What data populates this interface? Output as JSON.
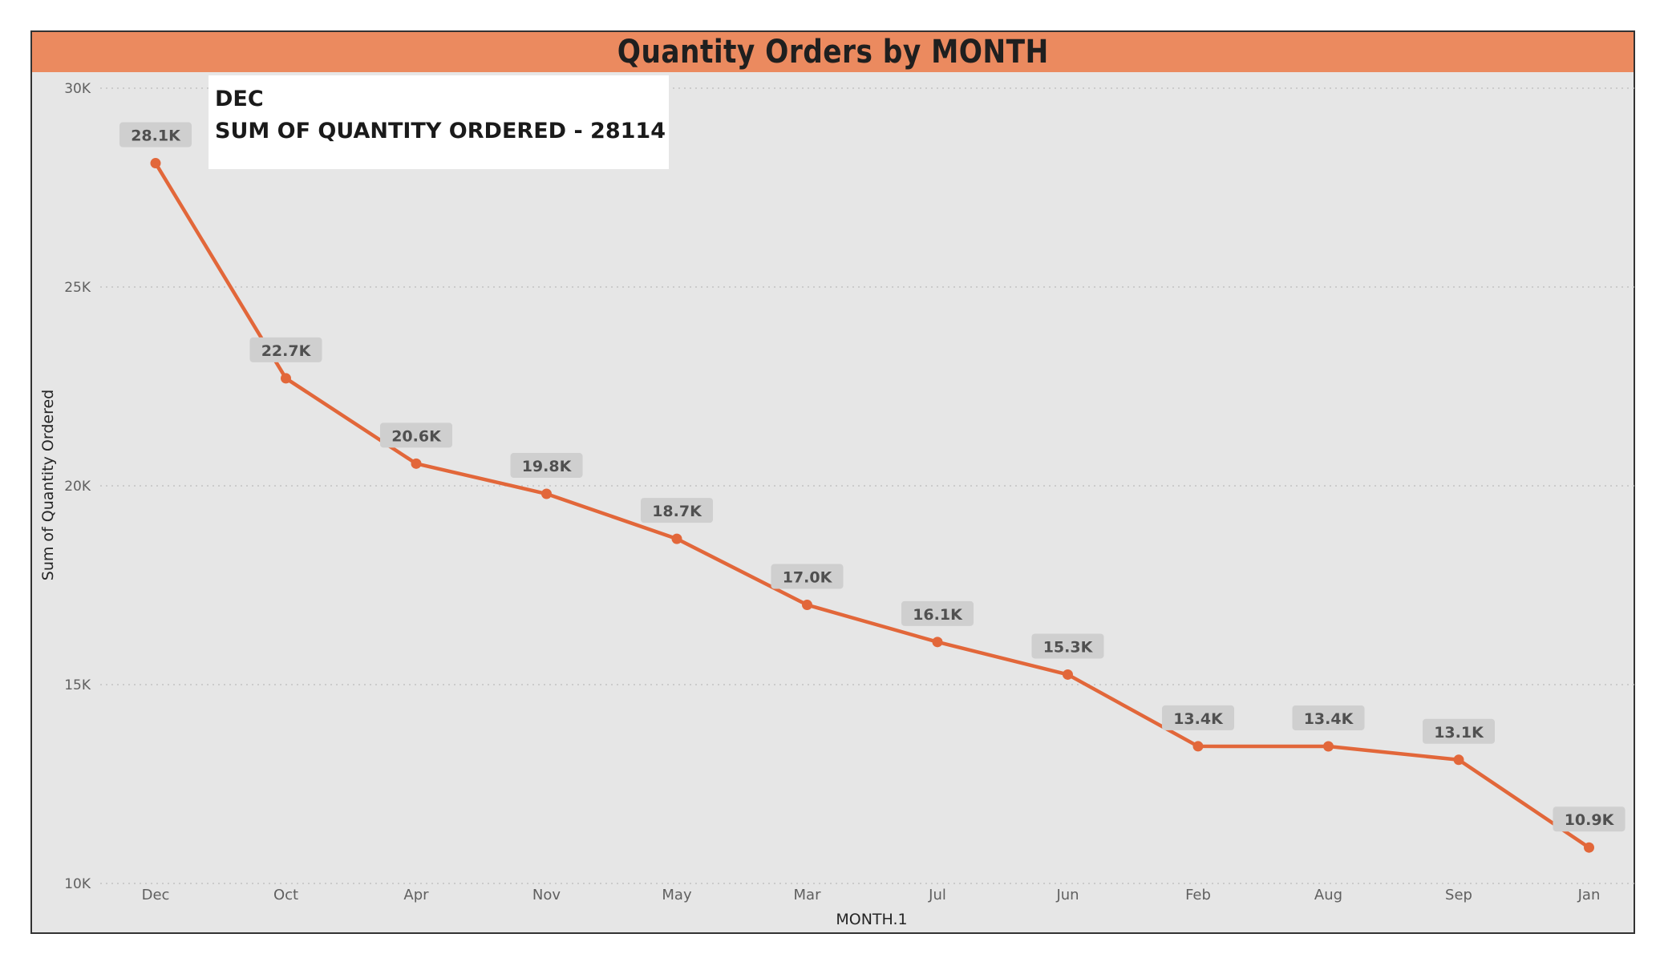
{
  "chart_data": {
    "type": "line",
    "title": "Quantity Orders by MONTH",
    "xlabel": "MONTH.1",
    "ylabel": "Sum of Quantity Ordered",
    "categories": [
      "Dec",
      "Oct",
      "Apr",
      "Nov",
      "May",
      "Mar",
      "Jul",
      "Jun",
      "Feb",
      "Aug",
      "Sep",
      "Jan"
    ],
    "series": [
      {
        "values": [
          28114,
          22703,
          20558,
          19798,
          18667,
          17005,
          16072,
          15253,
          13449,
          13448,
          13109,
          10903
        ]
      }
    ],
    "data_labels": [
      "28.1K",
      "22.7K",
      "20.6K",
      "19.8K",
      "18.7K",
      "17.0K",
      "16.1K",
      "15.3K",
      "13.4K",
      "13.4K",
      "13.1K",
      "10.9K"
    ],
    "ylim": [
      10000,
      30000
    ],
    "yticks": [
      10000,
      15000,
      20000,
      25000,
      30000
    ],
    "ytick_labels": [
      "10K",
      "15K",
      "20K",
      "25K",
      "30K"
    ],
    "grid": true,
    "line_color": "#e2673a",
    "background_color": "#e6e6e6",
    "title_bar_color": "#eb8a5f"
  },
  "tooltip": {
    "category": "DEC",
    "measure_text": "SUM OF QUANTITY ORDERED - 28114"
  }
}
